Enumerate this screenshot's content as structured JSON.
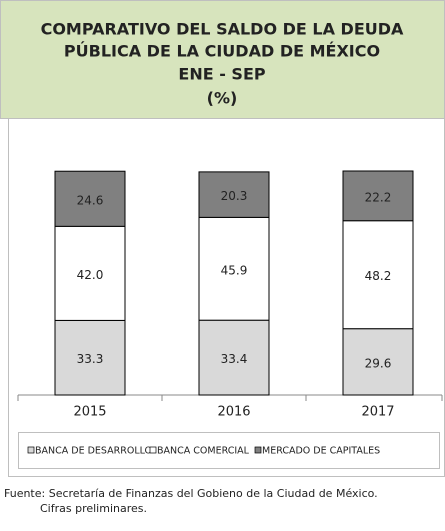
{
  "chart_data": {
    "type": "bar",
    "stacked": true,
    "title": [
      "COMPARATIVO DEL SALDO DE LA DEUDA",
      "PÚBLICA DE LA CIUDAD DE MÉXICO",
      "ENE - SEP",
      "(%)"
    ],
    "categories": [
      "2015",
      "2016",
      "2017"
    ],
    "series": [
      {
        "name": "BANCA DE DESARROLLO",
        "color": "#d9d9d9",
        "values": [
          33.3,
          33.4,
          29.6
        ]
      },
      {
        "name": "BANCA COMERCIAL",
        "color": "#ffffff",
        "values": [
          42,
          45.9,
          48.2
        ],
        "value_labels": [
          "42.0",
          "45.9",
          "48.2"
        ]
      },
      {
        "name": "MERCADO DE CAPITALES",
        "color": "#808080",
        "values": [
          24.6,
          20.3,
          22.2
        ]
      }
    ],
    "ylim": [
      0,
      100
    ],
    "source": [
      "Fuente: Secretaría de Finanzas del Gobieno de la Ciudad de México.",
      "Cifras preliminares."
    ]
  }
}
